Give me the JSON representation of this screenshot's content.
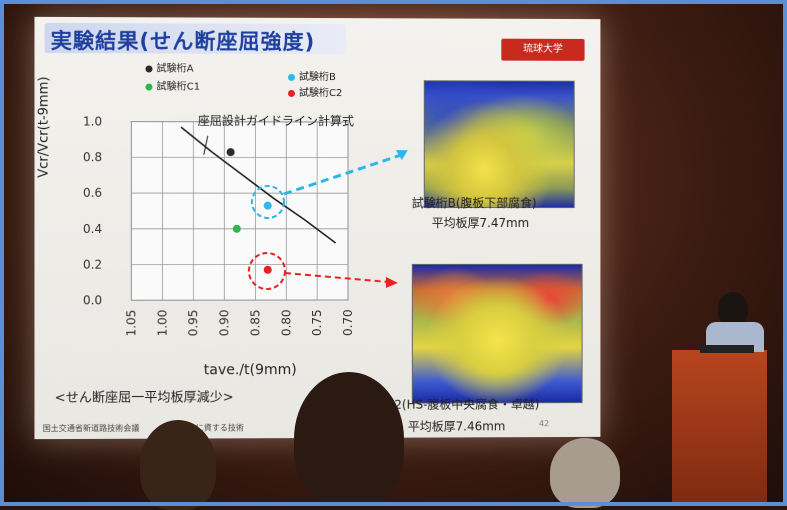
{
  "slide": {
    "title": "実験結果(せん断座屈強度)",
    "logo_text": "琉球大学",
    "legend": [
      {
        "label": "試験桁A",
        "color": "#2b2b2b"
      },
      {
        "label": "試験桁B",
        "color": "#32b8e8"
      },
      {
        "label": "試験桁C1",
        "color": "#2cb84a"
      },
      {
        "label": "試験桁C2",
        "color": "#e82020"
      }
    ],
    "curve_label": "座屈設計ガイドライン計算式",
    "ylabel": "Vcr/Vcr(t-9mm)",
    "xlabel": "tave./t(9mm)",
    "caption": "<せん断座屈一平均板厚減少>",
    "top_image_label": "試験桁B(腹板下部腐食)",
    "top_image_thickness": "平均板厚7.47mm",
    "bottom_image_label": "C2(HS-腹板中央腐食・卓越)",
    "bottom_image_thickness": "平均板厚7.46mm",
    "footer": "国土交通省新道路技術会議",
    "footer_right": "の向上に資する技術",
    "page_number": "42"
  },
  "chart_data": {
    "type": "scatter",
    "x_ticks": [
      "1.05",
      "1.00",
      "0.95",
      "0.90",
      "0.85",
      "0.80",
      "0.75",
      "0.70"
    ],
    "y_ticks": [
      "1.0",
      "0.8",
      "0.6",
      "0.4",
      "0.2",
      "0.0"
    ],
    "xlim": [
      1.05,
      0.7
    ],
    "ylim": [
      0.0,
      1.0
    ],
    "series": [
      {
        "name": "試験桁A",
        "x": [
          0.89
        ],
        "y": [
          0.83
        ]
      },
      {
        "name": "試験桁B",
        "x": [
          0.83
        ],
        "y": [
          0.53
        ]
      },
      {
        "name": "試験桁C1",
        "x": [
          0.88
        ],
        "y": [
          0.4
        ]
      },
      {
        "name": "試験桁C2",
        "x": [
          0.83
        ],
        "y": [
          0.17
        ]
      }
    ],
    "curve": {
      "name": "座屈設計ガイドライン計算式",
      "x": [
        0.97,
        0.92,
        0.87,
        0.82,
        0.77,
        0.72
      ],
      "y": [
        0.97,
        0.83,
        0.7,
        0.57,
        0.45,
        0.32
      ]
    }
  }
}
